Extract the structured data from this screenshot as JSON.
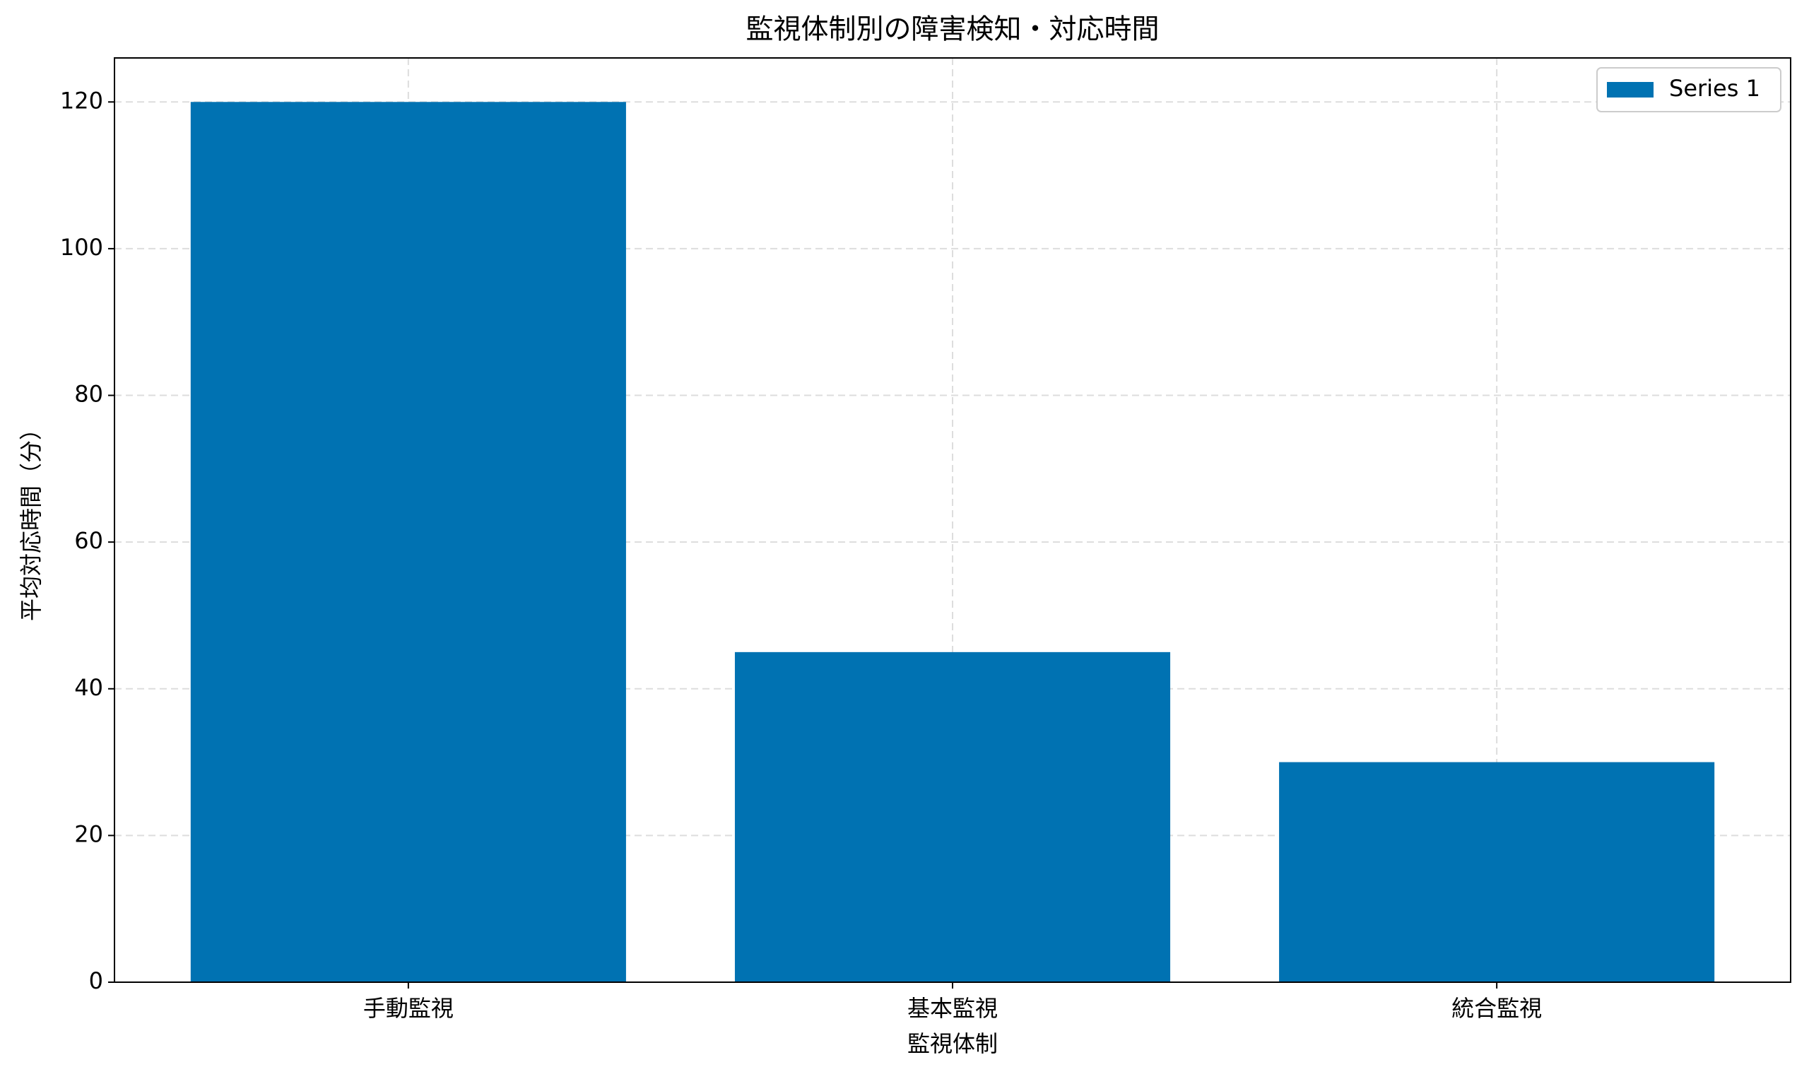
{
  "chart_data": {
    "type": "bar",
    "title": "監視体制別の障害検知・対応時間",
    "x_label": "監視体制",
    "y_label": "平均対応時間（分）",
    "categories": [
      "手動監視",
      "基本監視",
      "統合監視"
    ],
    "series": [
      {
        "name": "Series 1",
        "color": "#0072b2",
        "values": [
          120,
          45,
          30
        ]
      }
    ],
    "ylim": [
      0,
      126
    ],
    "yticks": [
      0,
      20,
      40,
      60,
      80,
      100,
      120
    ],
    "grid": true,
    "legend": "upper right"
  }
}
